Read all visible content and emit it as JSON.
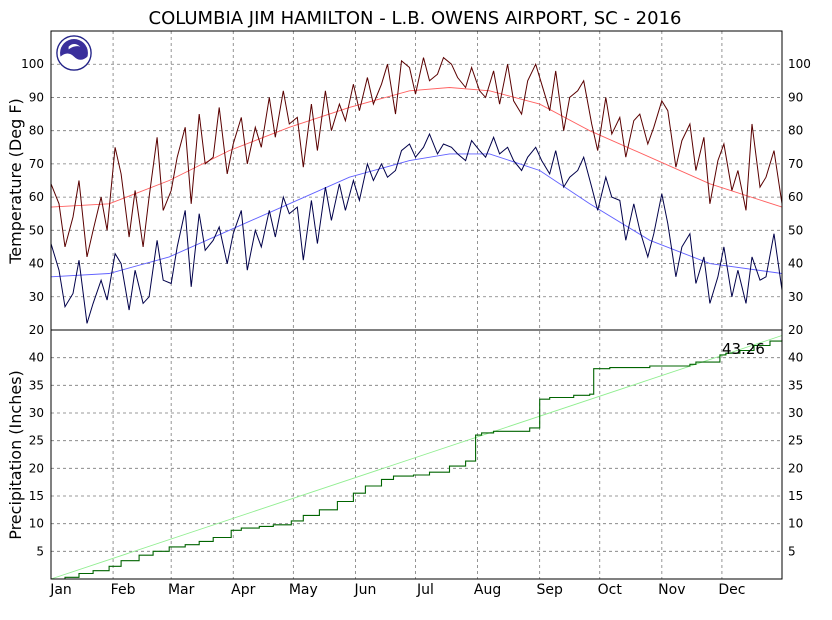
{
  "chart_data": [
    {
      "type": "line",
      "title": "COLUMBIA JIM HAMILTON - L.B. OWENS AIRPORT, SC - 2016",
      "ylabel": "Temperature (Deg F)",
      "ylim": [
        20,
        110
      ],
      "yticks": [
        "20",
        "30",
        "40",
        "50",
        "60",
        "70",
        "80",
        "90",
        "100"
      ],
      "grid": true,
      "x_unit": "day of year",
      "xlim": [
        1,
        366
      ],
      "colors": {
        "daily_high": "#5a0000",
        "daily_low": "#00004a",
        "normal_high": "#ff6060",
        "normal_low": "#6060ff"
      },
      "series": [
        {
          "role": "daily_high",
          "x": [
            1,
            5,
            8,
            12,
            15,
            19,
            22,
            26,
            29,
            33,
            36,
            40,
            43,
            47,
            50,
            54,
            57,
            61,
            64,
            68,
            71,
            75,
            78,
            82,
            85,
            89,
            92,
            96,
            99,
            103,
            106,
            110,
            113,
            117,
            120,
            124,
            127,
            131,
            134,
            138,
            141,
            145,
            148,
            152,
            155,
            159,
            162,
            166,
            169,
            173,
            176,
            180,
            183,
            187,
            190,
            194,
            197,
            201,
            204,
            208,
            211,
            215,
            218,
            222,
            225,
            229,
            232,
            236,
            239,
            243,
            246,
            250,
            253,
            257,
            260,
            264,
            267,
            271,
            274,
            278,
            281,
            285,
            288,
            292,
            295,
            299,
            302,
            306,
            309,
            313,
            316,
            320,
            323,
            327,
            330,
            334,
            337,
            341,
            344,
            348,
            351,
            355,
            358,
            362,
            366
          ],
          "values": [
            64,
            58,
            45,
            54,
            65,
            42,
            50,
            60,
            50,
            75,
            67,
            48,
            62,
            45,
            60,
            78,
            56,
            62,
            72,
            81,
            58,
            85,
            70,
            72,
            87,
            67,
            76,
            84,
            70,
            81,
            75,
            90,
            78,
            92,
            82,
            84,
            69,
            88,
            74,
            92,
            80,
            88,
            83,
            94,
            86,
            96,
            88,
            94,
            100,
            85,
            101,
            99,
            91,
            102,
            95,
            97,
            102,
            100,
            96,
            93,
            99,
            92,
            90,
            98,
            88,
            100,
            89,
            85,
            95,
            100,
            94,
            86,
            98,
            80,
            90,
            92,
            95,
            82,
            74,
            90,
            79,
            84,
            72,
            83,
            85,
            76,
            81,
            89,
            86,
            69,
            77,
            82,
            68,
            78,
            58,
            71,
            76,
            62,
            68,
            56,
            82,
            63,
            66,
            74,
            58
          ]
        },
        {
          "role": "daily_low",
          "x": [
            1,
            5,
            8,
            12,
            15,
            19,
            22,
            26,
            29,
            33,
            36,
            40,
            43,
            47,
            50,
            54,
            57,
            61,
            64,
            68,
            71,
            75,
            78,
            82,
            85,
            89,
            92,
            96,
            99,
            103,
            106,
            110,
            113,
            117,
            120,
            124,
            127,
            131,
            134,
            138,
            141,
            145,
            148,
            152,
            155,
            159,
            162,
            166,
            169,
            173,
            176,
            180,
            183,
            187,
            190,
            194,
            197,
            201,
            204,
            208,
            211,
            215,
            218,
            222,
            225,
            229,
            232,
            236,
            239,
            243,
            246,
            250,
            253,
            257,
            260,
            264,
            267,
            271,
            274,
            278,
            281,
            285,
            288,
            292,
            295,
            299,
            302,
            306,
            309,
            313,
            316,
            320,
            323,
            327,
            330,
            334,
            337,
            341,
            344,
            348,
            351,
            355,
            358,
            362,
            366
          ],
          "values": [
            46,
            38,
            27,
            31,
            41,
            22,
            28,
            35,
            29,
            43,
            40,
            26,
            38,
            28,
            30,
            47,
            35,
            34,
            45,
            56,
            33,
            55,
            44,
            47,
            51,
            40,
            49,
            56,
            38,
            50,
            45,
            56,
            48,
            60,
            55,
            57,
            41,
            59,
            46,
            63,
            53,
            64,
            56,
            65,
            59,
            70,
            65,
            70,
            66,
            68,
            74,
            76,
            72,
            75,
            79,
            73,
            76,
            75,
            73,
            71,
            77,
            74,
            72,
            78,
            73,
            75,
            71,
            68,
            72,
            75,
            71,
            67,
            74,
            63,
            66,
            68,
            72,
            63,
            56,
            66,
            60,
            59,
            47,
            58,
            50,
            42,
            49,
            61,
            52,
            36,
            45,
            49,
            34,
            42,
            28,
            36,
            45,
            30,
            38,
            28,
            42,
            35,
            36,
            49,
            32
          ]
        },
        {
          "role": "normal_high",
          "x": [
            1,
            30,
            60,
            90,
            120,
            150,
            180,
            200,
            220,
            245,
            270,
            300,
            330,
            366
          ],
          "values": [
            57,
            58,
            65,
            74,
            81,
            87,
            92,
            93,
            92,
            88,
            80,
            72,
            64,
            57
          ]
        },
        {
          "role": "normal_low",
          "x": [
            1,
            30,
            60,
            90,
            120,
            150,
            180,
            200,
            220,
            245,
            270,
            300,
            330,
            366
          ],
          "values": [
            36,
            37,
            42,
            50,
            58,
            66,
            71,
            73,
            73,
            68,
            58,
            47,
            40,
            37
          ]
        }
      ]
    },
    {
      "type": "line",
      "ylabel": "Precipitation (Inches)",
      "ylim": [
        0,
        45
      ],
      "yticks": [
        "5",
        "10",
        "15",
        "20",
        "25",
        "30",
        "35",
        "40"
      ],
      "grid": true,
      "xlim": [
        1,
        366
      ],
      "categories": [
        "Jan",
        "Feb",
        "Mar",
        "Apr",
        "May",
        "Jun",
        "Jul",
        "Aug",
        "Sep",
        "Oct",
        "Nov",
        "Dec"
      ],
      "annotation": "43.26",
      "colors": {
        "cumulative": "#006400",
        "normal": "#90ee90"
      },
      "series": [
        {
          "role": "cumulative",
          "x": [
            1,
            8,
            15,
            22,
            30,
            36,
            45,
            52,
            60,
            68,
            75,
            82,
            91,
            96,
            105,
            112,
            121,
            127,
            135,
            144,
            152,
            158,
            166,
            172,
            182,
            190,
            200,
            208,
            213,
            216,
            222,
            240,
            245,
            250,
            262,
            270,
            272,
            280,
            300,
            320,
            323,
            335,
            338,
            345,
            352,
            360,
            366
          ],
          "values": [
            0,
            0.3,
            1,
            1.5,
            2.3,
            3.3,
            4.3,
            5,
            5.8,
            6.2,
            6.8,
            7.5,
            8.8,
            9.2,
            9.5,
            9.8,
            10.5,
            11.5,
            12.5,
            14,
            15.5,
            16.8,
            18,
            18.6,
            18.8,
            19.3,
            20.4,
            21.3,
            26,
            26.4,
            26.7,
            27.3,
            32.5,
            32.8,
            33.2,
            33.4,
            38,
            38.2,
            38.5,
            38.8,
            39.2,
            40.5,
            40.8,
            41.3,
            42.2,
            43,
            43.26
          ]
        },
        {
          "role": "normal",
          "x": [
            1,
            366
          ],
          "values": [
            0,
            44
          ]
        }
      ]
    }
  ]
}
